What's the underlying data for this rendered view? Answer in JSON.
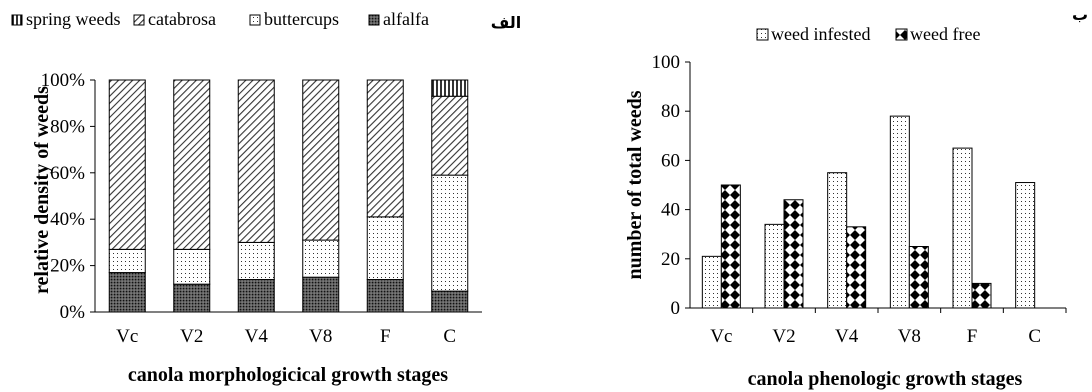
{
  "chart_data": [
    {
      "type": "bar",
      "stacked": true,
      "panel_label": "الف",
      "categories": [
        "Vc",
        "V2",
        "V4",
        "V8",
        "F",
        "C"
      ],
      "series": [
        {
          "name": "alfalfa",
          "values": [
            17,
            12,
            14,
            15,
            14,
            9
          ]
        },
        {
          "name": "buttercups",
          "values": [
            10,
            15,
            16,
            16,
            27,
            50
          ]
        },
        {
          "name": "catabrosa",
          "values": [
            73,
            73,
            70,
            69,
            59,
            34
          ]
        },
        {
          "name": "spring weeds",
          "values": [
            0,
            0,
            0,
            0,
            0,
            7
          ]
        }
      ],
      "legend_order": [
        "spring weeds",
        "catabrosa",
        "buttercups",
        "alfalfa"
      ],
      "xlabel": "canola morphologicical growth stages",
      "ylabel": "relative density of weeds",
      "ylim": [
        0,
        100
      ],
      "ytick_labels": [
        "0%",
        "20%",
        "40%",
        "60%",
        "80%",
        "100%"
      ],
      "legend_position": "top",
      "grid": false
    },
    {
      "type": "bar",
      "panel_label": "ب",
      "categories": [
        "Vc",
        "V2",
        "V4",
        "V8",
        "F",
        "C"
      ],
      "series": [
        {
          "name": "weed infested",
          "values": [
            21,
            34,
            55,
            78,
            65,
            51
          ]
        },
        {
          "name": "weed free",
          "values": [
            50,
            44,
            33,
            25,
            10,
            0
          ]
        }
      ],
      "xlabel": "canola phenologic growth stages",
      "ylabel": "number of total weeds",
      "ylim": [
        0,
        100
      ],
      "ytick_labels": [
        "0",
        "20",
        "40",
        "60",
        "80",
        "100"
      ],
      "legend_position": "top",
      "grid": false
    }
  ]
}
